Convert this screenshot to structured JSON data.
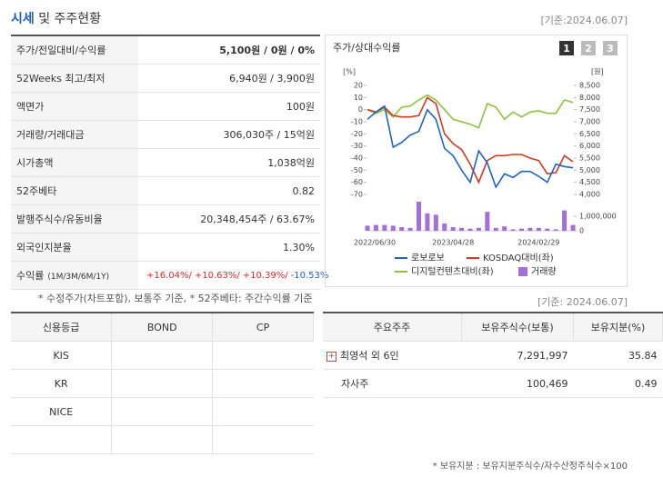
{
  "header": {
    "title_main": "시세",
    "title_rest": "및 주주현황",
    "date": "[기준:2024.06.07]"
  },
  "summary": {
    "rows": [
      [
        "주가/전일대비/수익률",
        "5,100원 / 0원 / 0%"
      ],
      [
        "52Weeks 최고/최저",
        "6,940원 / 3,900원"
      ],
      [
        "액면가",
        "100원"
      ],
      [
        "거래량/거래대금",
        "306,030주 / 15억원"
      ],
      [
        "시가총액",
        "1,038억원"
      ],
      [
        "52주베타",
        "0.82"
      ],
      [
        "발행주식수/유동비율",
        "20,348,454주 / 63.67%"
      ],
      [
        "외국인지분율",
        "1.30%"
      ]
    ],
    "returns": {
      "label": "수익률",
      "period": "(1M/3M/6M/1Y)",
      "values": [
        "+16.04%/",
        "+10.63%/",
        "+10.39%/",
        "-10.53%"
      ],
      "colors": [
        "#e0262c",
        "#e0262c",
        "#e0262c",
        "#1f5fbf"
      ]
    }
  },
  "summary_note": "* 수정주가(차트포함), 보통주 기준, * 52주베타: 주간수익률 기준",
  "chart_data": {
    "type": "line",
    "title": "주가/상대수익률",
    "tabs": [
      "1",
      "2",
      "3"
    ],
    "categories": [
      "2022/06/30",
      null,
      null,
      null,
      null,
      null,
      null,
      null,
      null,
      null,
      "2023/04/28",
      null,
      null,
      null,
      null,
      null,
      null,
      null,
      null,
      null,
      "2024/02/29",
      null,
      null,
      null,
      null
    ],
    "y_unit": "[%]",
    "y2_unit": "[원]",
    "ylim": [
      -70,
      20
    ],
    "yticks": [
      20,
      10,
      0,
      -10,
      -20,
      -30,
      -40,
      -50,
      -60,
      -70
    ],
    "y2lim": [
      4000,
      8500
    ],
    "y2ticks": [
      {
        "value": 8500,
        "label": "8,500"
      },
      {
        "value": 8000,
        "label": "8,000"
      },
      {
        "value": 7500,
        "label": "7,500"
      },
      {
        "value": 7000,
        "label": "7,000"
      },
      {
        "value": 6500,
        "label": "6,500"
      },
      {
        "value": 6000,
        "label": "6,000"
      },
      {
        "value": 5500,
        "label": "5,500"
      },
      {
        "value": 5000,
        "label": "5,000"
      },
      {
        "value": 4500,
        "label": "4,500"
      },
      {
        "value": 4000,
        "label": "4,000"
      }
    ],
    "series": [
      {
        "name": "로보로보",
        "color": "#1e64c8",
        "axis": "y2",
        "values": [
          7100,
          7400,
          7650,
          5950,
          6150,
          6450,
          6600,
          7500,
          7100,
          5900,
          5600,
          5000,
          4500,
          5800,
          5300,
          4300,
          4850,
          4700,
          4950,
          4950,
          4750,
          4500,
          5250,
          5150,
          5100
        ]
      },
      {
        "name": "KOSDAQ대비(좌)",
        "color": "#d5381d",
        "values": [
          0,
          -2,
          2,
          -5,
          -6,
          -6,
          -5,
          10,
          5,
          -20,
          -28,
          -33,
          -45,
          -60,
          -42,
          -38,
          -38,
          -37,
          -37,
          -40,
          -42,
          -53,
          -52,
          -38,
          -43
        ]
      },
      {
        "name": "디지털컨텐츠대비(좌)",
        "color": "#8cc43c",
        "values": [
          0,
          -3,
          0,
          -6,
          2,
          3,
          8,
          12,
          8,
          0,
          -8,
          -10,
          -12,
          -15,
          5,
          2,
          -8,
          -2,
          -6,
          -2,
          -1,
          -3,
          -3,
          8,
          6
        ]
      }
    ],
    "volume": {
      "name": "거래량",
      "color": "#a46fd6",
      "lim": [
        0,
        2000000
      ],
      "ticks": [
        {
          "value": 1000000,
          "label": "1,000,000"
        },
        0
      ],
      "values": [
        350000,
        400000,
        400000,
        350000,
        250000,
        200000,
        2000000,
        1200000,
        1100000,
        500000,
        250000,
        200000,
        150000,
        200000,
        1300000,
        200000,
        300000,
        100000,
        150000,
        200000,
        200000,
        150000,
        100000,
        1400000,
        400000
      ]
    }
  },
  "chart_date": "[기준: 2024.06.07]",
  "credit": {
    "headers": [
      "신용등급",
      "BOND",
      "CP"
    ],
    "rows": [
      "KIS",
      "KR",
      "NICE"
    ]
  },
  "shareholders": {
    "headers": [
      "주요주주",
      "보유주식수(보통)",
      "보유지분(%)"
    ],
    "rows": [
      [
        "최영석 외 6인",
        "7,291,997",
        "35.84"
      ],
      [
        "자사주",
        "100,469",
        "0.49"
      ]
    ]
  },
  "shareholder_note": "* 보유지분 : 보유지분주식수/자수산정주식수×100"
}
